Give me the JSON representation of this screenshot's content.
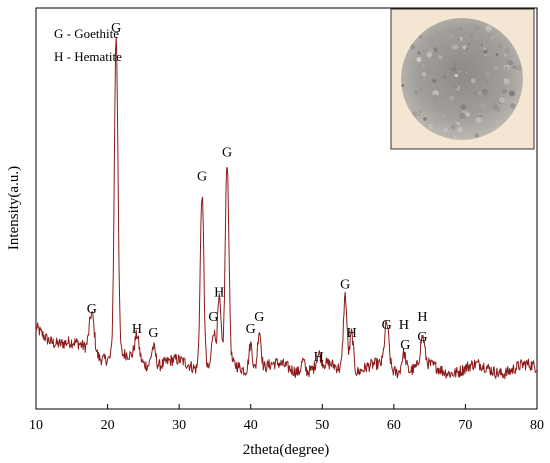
{
  "chart_data": {
    "type": "line",
    "title": "",
    "xlabel": "2theta(degree)",
    "ylabel": "Intensity(a.u.)",
    "xlim": [
      10,
      80
    ],
    "x_ticks": [
      "10",
      "20",
      "30",
      "40",
      "50",
      "60",
      "70",
      "80"
    ],
    "y_ticks_shown": false,
    "grid": false,
    "line_color": "#8B1A1A",
    "legend": {
      "placement": "top-left",
      "entries": [
        "G - Goethite",
        "H - Hematite"
      ]
    },
    "inset_image": {
      "description_icon": "sample-photo-icon",
      "placement": "top-right",
      "background": "#f5e6d3"
    },
    "baseline": 0.1,
    "peaks": [
      {
        "x": 17.8,
        "height": 0.1,
        "width": 0.35
      },
      {
        "x": 21.2,
        "height": 0.8,
        "width": 0.25
      },
      {
        "x": 24.1,
        "height": 0.06,
        "width": 0.3
      },
      {
        "x": 26.4,
        "height": 0.05,
        "width": 0.3
      },
      {
        "x": 33.2,
        "height": 0.44,
        "width": 0.25
      },
      {
        "x": 34.8,
        "height": 0.09,
        "width": 0.25
      },
      {
        "x": 35.6,
        "height": 0.16,
        "width": 0.25
      },
      {
        "x": 36.7,
        "height": 0.5,
        "width": 0.25
      },
      {
        "x": 40.0,
        "height": 0.07,
        "width": 0.25
      },
      {
        "x": 41.2,
        "height": 0.1,
        "width": 0.25
      },
      {
        "x": 47.3,
        "height": 0.03,
        "width": 0.25
      },
      {
        "x": 49.5,
        "height": 0.03,
        "width": 0.3
      },
      {
        "x": 53.2,
        "height": 0.19,
        "width": 0.25
      },
      {
        "x": 54.1,
        "height": 0.1,
        "width": 0.25
      },
      {
        "x": 59.0,
        "height": 0.11,
        "width": 0.3
      },
      {
        "x": 61.4,
        "height": 0.05,
        "width": 0.3
      },
      {
        "x": 64.0,
        "height": 0.07,
        "width": 0.3
      }
    ],
    "annotations": [
      {
        "label": "G",
        "x": 17.8,
        "y": 0.24
      },
      {
        "label": "G",
        "x": 21.2,
        "y": 0.94
      },
      {
        "label": "H",
        "x": 24.1,
        "y": 0.19
      },
      {
        "label": "G",
        "x": 26.4,
        "y": 0.18
      },
      {
        "label": "G",
        "x": 33.2,
        "y": 0.57
      },
      {
        "label": "G",
        "x": 34.8,
        "y": 0.22
      },
      {
        "label": "H",
        "x": 35.6,
        "y": 0.28
      },
      {
        "label": "G",
        "x": 36.7,
        "y": 0.63
      },
      {
        "label": "G",
        "x": 40.0,
        "y": 0.19
      },
      {
        "label": "G",
        "x": 41.2,
        "y": 0.22
      },
      {
        "label": "H",
        "x": 49.5,
        "y": 0.12
      },
      {
        "label": "G",
        "x": 53.2,
        "y": 0.3
      },
      {
        "label": "H",
        "x": 54.1,
        "y": 0.18
      },
      {
        "label": "G",
        "x": 59.0,
        "y": 0.2
      },
      {
        "label": "H",
        "x": 61.4,
        "y": 0.2
      },
      {
        "label": "G",
        "x": 61.6,
        "y": 0.15
      },
      {
        "label": "H",
        "x": 64.0,
        "y": 0.22
      },
      {
        "label": "G",
        "x": 64.0,
        "y": 0.17
      }
    ]
  }
}
